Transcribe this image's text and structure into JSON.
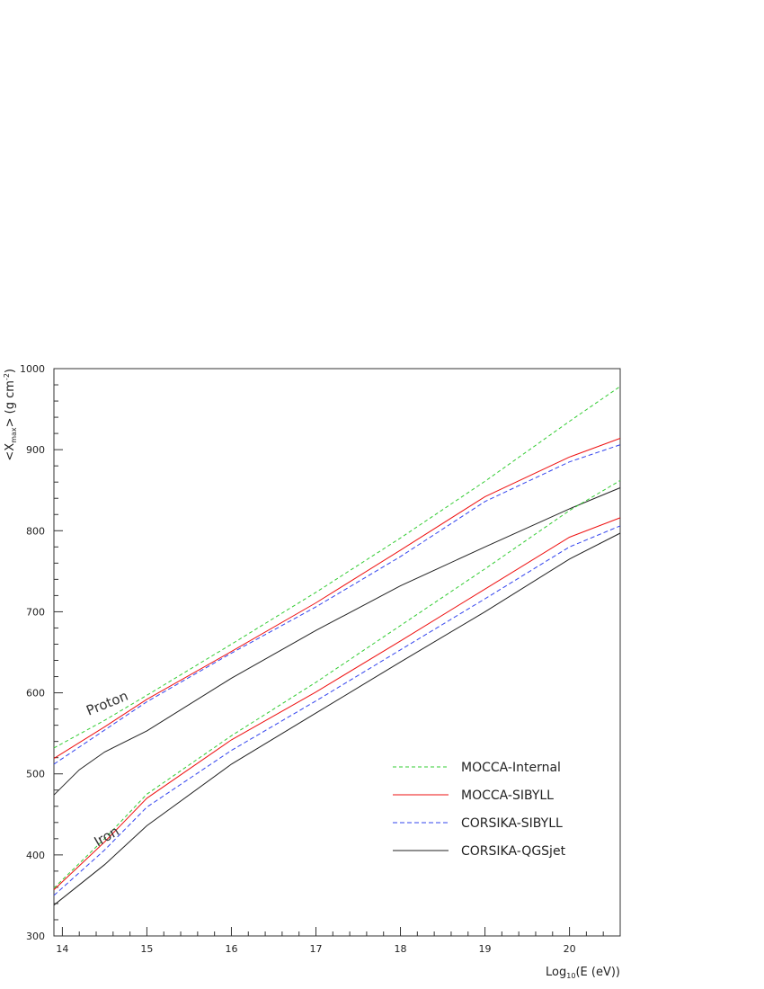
{
  "chart_data": {
    "type": "line",
    "xlim": [
      13.9,
      20.6
    ],
    "ylim": [
      300,
      1000
    ],
    "x_ticks": [
      14,
      15,
      16,
      17,
      18,
      19,
      20
    ],
    "y_ticks": [
      300,
      400,
      500,
      600,
      700,
      800,
      900,
      1000
    ],
    "xlabel": {
      "prefix": "Log",
      "sub": "10",
      "suffix": "(E (eV))"
    },
    "ylabel": {
      "open": "<X",
      "sub": "max",
      "middle": "> (g cm",
      "sup": "-2",
      "close": ")"
    },
    "annotations": [
      {
        "id": "proton",
        "text": "Proton",
        "x": 14.55,
        "y": 582,
        "angle": -22
      },
      {
        "id": "iron",
        "text": "Iron",
        "x": 14.55,
        "y": 418,
        "angle": -30
      }
    ],
    "legend": {
      "position": "bottom-right"
    },
    "series": [
      {
        "id": "mocca-internal",
        "name": "MOCCA-Internal",
        "color": "#33cc33",
        "dash": "4,3",
        "legend": true,
        "x": [
          13.9,
          14.5,
          15,
          16,
          17,
          18,
          19,
          20,
          20.6
        ],
        "y": [
          532,
          566,
          597,
          660,
          724,
          791,
          861,
          935,
          978
        ]
      },
      {
        "id": "mocca-sibyll",
        "name": "MOCCA-SIBYLL",
        "color": "#ee1111",
        "dash": "",
        "legend": true,
        "x": [
          13.9,
          14.5,
          15,
          16,
          17,
          18,
          19,
          20,
          20.6
        ],
        "y": [
          519,
          558,
          592,
          651,
          711,
          776,
          842,
          891,
          914
        ]
      },
      {
        "id": "corsika-sibyll",
        "name": "CORSIKA-SIBYLL",
        "color": "#3344ee",
        "dash": "5,3",
        "legend": true,
        "x": [
          13.9,
          14.5,
          15,
          16,
          17,
          18,
          19,
          20,
          20.6
        ],
        "y": [
          512,
          554,
          589,
          649,
          706,
          768,
          836,
          885,
          906
        ]
      },
      {
        "id": "corsika-qgsjet",
        "name": "CORSIKA-QGSjet",
        "color": "#222222",
        "dash": "",
        "legend": true,
        "x": [
          13.9,
          14.2,
          14.5,
          15,
          16,
          17,
          18,
          19,
          20,
          20.6
        ],
        "y": [
          474,
          505,
          527,
          553,
          618,
          677,
          732,
          780,
          827,
          853
        ]
      },
      {
        "id": "mocca-internal-iron",
        "name": "",
        "color": "#33cc33",
        "dash": "4,3",
        "legend": false,
        "x": [
          13.9,
          14.5,
          15,
          16,
          17,
          18,
          19,
          20,
          20.6
        ],
        "y": [
          359,
          420,
          475,
          547,
          613,
          683,
          753,
          825,
          862
        ]
      },
      {
        "id": "mocca-sibyll-iron",
        "name": "",
        "color": "#ee1111",
        "dash": "",
        "legend": false,
        "x": [
          13.9,
          14.5,
          15,
          16,
          17,
          18,
          19,
          20,
          20.6
        ],
        "y": [
          357,
          416,
          470,
          542,
          601,
          664,
          728,
          792,
          816
        ]
      },
      {
        "id": "corsika-sibyll-iron",
        "name": "",
        "color": "#3344ee",
        "dash": "5,3",
        "legend": false,
        "x": [
          13.9,
          14.5,
          15,
          16,
          17,
          18,
          19,
          20,
          20.6
        ],
        "y": [
          350,
          406,
          459,
          529,
          590,
          653,
          716,
          780,
          806
        ]
      },
      {
        "id": "corsika-qgsjet-iron",
        "name": "",
        "color": "#222222",
        "dash": "",
        "legend": false,
        "x": [
          13.9,
          14.5,
          15,
          16,
          17,
          18,
          19,
          20,
          20.6
        ],
        "y": [
          338,
          388,
          436,
          512,
          575,
          638,
          700,
          765,
          797
        ]
      }
    ]
  }
}
